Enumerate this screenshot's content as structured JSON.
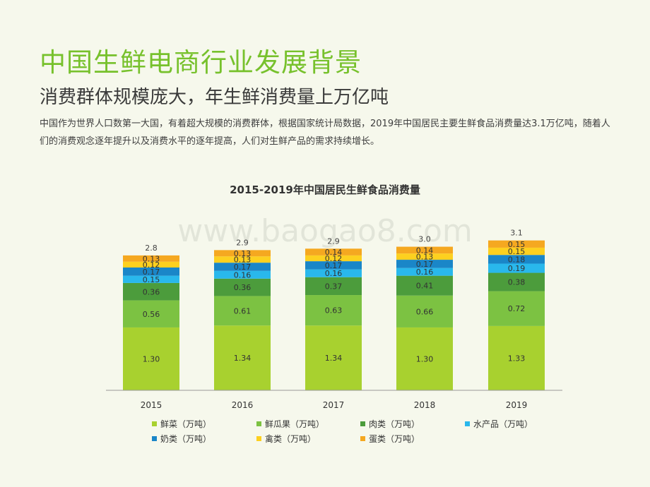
{
  "header": {
    "title": "中国生鲜电商行业发展背景",
    "subtitle": "消费群体规模庞大，年生鲜消费量上万亿吨",
    "body": "中国作为世界人口数第一大国，有着超大规模的消费群体，根据国家统计局数据，2019年中国居民主要生鲜食品消费量达3.1万亿吨，随着人们的消费观念逐年提升以及消费水平的逐年提高，人们对生鲜产品的需求持续增长。"
  },
  "watermark": "www.baogao8.com",
  "chart_data": {
    "type": "bar",
    "stacked": true,
    "title": "2015-2019年中国居民生鲜食品消费量",
    "categories": [
      "2015",
      "2016",
      "2017",
      "2018",
      "2019"
    ],
    "totals": [
      "2.8",
      "2.9",
      "2.9",
      "3.0",
      "3.1"
    ],
    "series": [
      {
        "name": "鲜菜（万吨）",
        "color": "#a8d12f",
        "values": [
          "1.30",
          "1.34",
          "1.34",
          "1.30",
          "1.33"
        ]
      },
      {
        "name": "鲜瓜果（万吨）",
        "color": "#7cc242",
        "values": [
          "0.56",
          "0.61",
          "0.63",
          "0.66",
          "0.72"
        ]
      },
      {
        "name": "肉类（万吨）",
        "color": "#4c9c3c",
        "values": [
          "0.36",
          "0.36",
          "0.37",
          "0.41",
          "0.38"
        ]
      },
      {
        "name": "水产品（万吨）",
        "color": "#29b8ec",
        "values": [
          "0.15",
          "0.16",
          "0.16",
          "0.16",
          "0.19"
        ]
      },
      {
        "name": "奶类（万吨）",
        "color": "#1a86c8",
        "values": [
          "0.17",
          "0.17",
          "0.17",
          "0.17",
          "0.18"
        ]
      },
      {
        "name": "禽类（万吨）",
        "color": "#fdd01f",
        "values": [
          "0.12",
          "0.13",
          "0.12",
          "0.13",
          "0.15"
        ]
      },
      {
        "name": "蛋类（万吨）",
        "color": "#f5a820",
        "values": [
          "0.13",
          "0.13",
          "0.14",
          "0.14",
          "0.15"
        ]
      }
    ],
    "legend_position": "bottom",
    "grid": false
  }
}
